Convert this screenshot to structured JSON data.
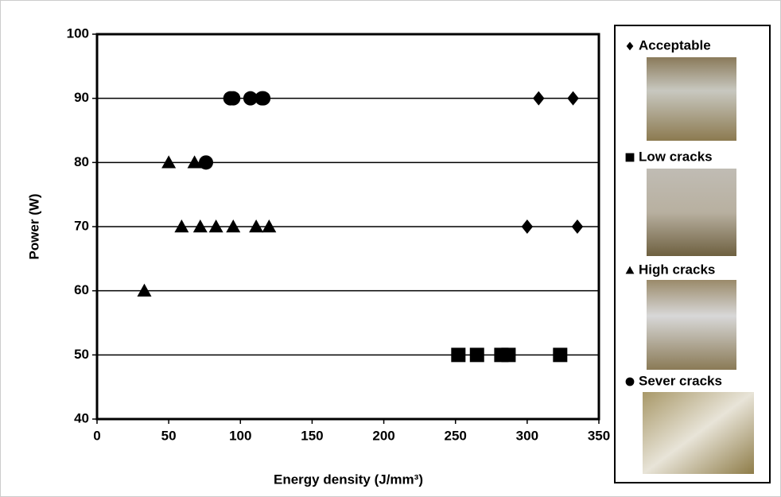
{
  "chart_data": {
    "type": "scatter",
    "x_label": "Energy density (J/mm³)",
    "y_label": "Power (W)",
    "xlim": [
      0,
      350
    ],
    "xticks": [
      0,
      50,
      100,
      150,
      200,
      250,
      300,
      350
    ],
    "ylim": [
      40,
      100
    ],
    "yticks": [
      40,
      50,
      60,
      70,
      80,
      90,
      100
    ],
    "grid": true,
    "series": [
      {
        "name": "Acceptable",
        "color": "#000000",
        "marker": "diamond",
        "x": [
          308,
          332,
          300,
          335
        ],
        "y": [
          90,
          90,
          70,
          70
        ]
      },
      {
        "name": "Low cracks",
        "color": "#000000",
        "marker": "square",
        "x": [
          252,
          265,
          282,
          287,
          323
        ],
        "y": [
          50,
          50,
          50,
          50,
          50
        ]
      },
      {
        "name": "High cracks",
        "color": "#000000",
        "marker": "triangle",
        "x": [
          33,
          50,
          68,
          59,
          72,
          83,
          95,
          111,
          120
        ],
        "y": [
          60,
          80,
          80,
          70,
          70,
          70,
          70,
          70,
          70
        ]
      },
      {
        "name": "Sever cracks",
        "color": "#000000",
        "marker": "circle",
        "x": [
          93,
          95,
          107,
          115,
          116,
          76
        ],
        "y": [
          90,
          90,
          90,
          90,
          90,
          80
        ]
      }
    ]
  }
}
